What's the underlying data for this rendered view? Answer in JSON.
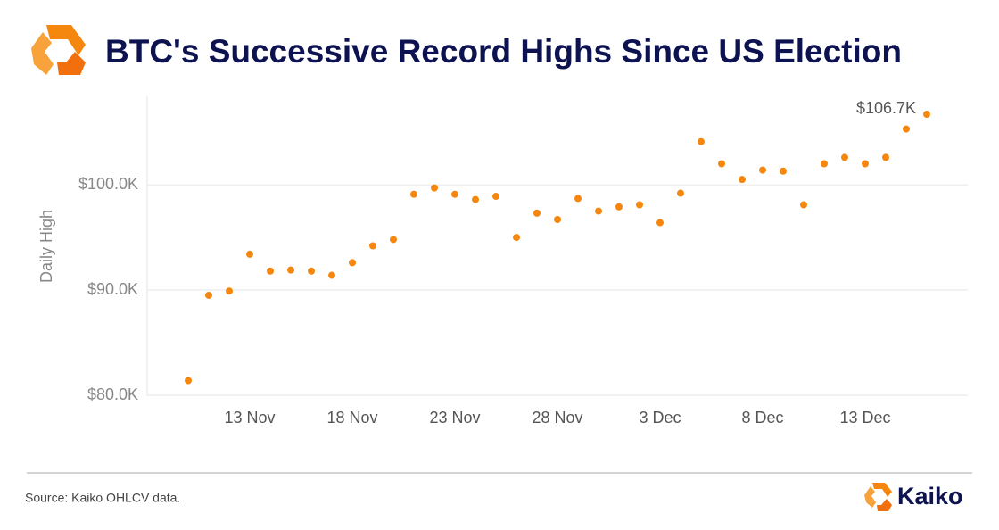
{
  "title": "BTC's Successive Record Highs Since US Election",
  "chart_data": {
    "type": "scatter",
    "y_label": "Daily High",
    "x": [
      null,
      null,
      null,
      "13 Nov",
      null,
      null,
      null,
      null,
      "18 Nov",
      null,
      null,
      null,
      null,
      "23 Nov",
      null,
      null,
      null,
      null,
      "28 Nov",
      null,
      null,
      null,
      null,
      "3 Dec",
      null,
      null,
      null,
      null,
      "8 Dec",
      null,
      null,
      null,
      null,
      "13 Dec",
      null,
      null,
      null
    ],
    "values": [
      81.4,
      89.5,
      89.9,
      93.4,
      91.8,
      91.9,
      91.8,
      91.4,
      92.6,
      94.2,
      94.8,
      99.1,
      99.7,
      99.1,
      98.6,
      98.9,
      95.0,
      97.3,
      96.7,
      98.7,
      97.5,
      97.9,
      98.1,
      96.4,
      99.2,
      104.1,
      102.0,
      100.5,
      101.4,
      101.3,
      98.1,
      102.0,
      102.6,
      102.0,
      102.6,
      105.3,
      106.7
    ],
    "value_labels": [
      null,
      null,
      null,
      null,
      null,
      null,
      null,
      null,
      null,
      null,
      null,
      null,
      null,
      null,
      null,
      null,
      null,
      null,
      null,
      null,
      null,
      null,
      null,
      null,
      null,
      null,
      null,
      null,
      null,
      null,
      null,
      null,
      null,
      null,
      null,
      null,
      "$106.7K"
    ],
    "color": "#f5870f",
    "ylim": [
      80,
      108.4
    ],
    "yticks": [
      {
        "value": 80,
        "label": "$80.0K"
      },
      {
        "value": 90,
        "label": "$90.0K"
      },
      {
        "value": 100,
        "label": "$100.0K"
      }
    ],
    "grid": true
  },
  "footer": {
    "source": "Source: Kaiko OHLCV data.",
    "brand": "Kaiko"
  }
}
